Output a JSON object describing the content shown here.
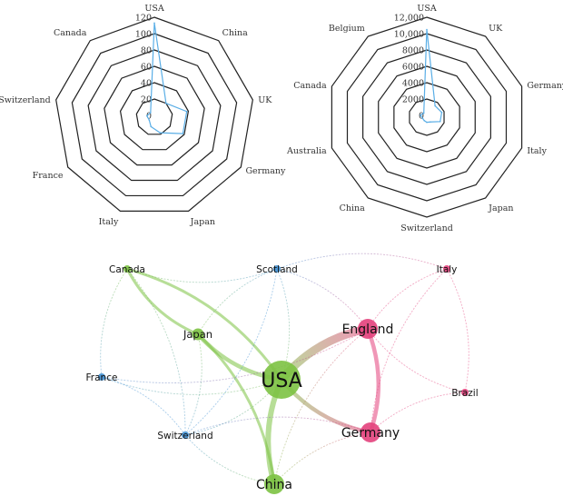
{
  "chart_data": [
    {
      "type": "radar",
      "axes": [
        "USA",
        "China",
        "UK",
        "Germany",
        "Japan",
        "Italy",
        "France",
        "Switzerland",
        "Canada"
      ],
      "ticks": [
        "0",
        "20",
        "40",
        "60",
        "80",
        "100",
        "120"
      ],
      "range": [
        0,
        120
      ],
      "series": [
        {
          "values": [
            113,
            20,
            38,
            38,
            18,
            10,
            5,
            7,
            5
          ],
          "color": "#5aaee6"
        }
      ]
    },
    {
      "type": "radar",
      "axes": [
        "USA",
        "UK",
        "Germany",
        "Italy",
        "Japan",
        "Switzerland",
        "China",
        "Australia",
        "Canada",
        "Belgium"
      ],
      "ticks": [
        "0",
        "2000",
        "4000",
        "6000",
        "8000",
        "10,000",
        "12,000"
      ],
      "range": [
        0,
        12000
      ],
      "series": [
        {
          "values": [
            10500,
            1500,
            1700,
            1500,
            500,
            400,
            300,
            300,
            600,
            400
          ],
          "color": "#5aaee6"
        }
      ]
    },
    {
      "type": "network",
      "nodes": [
        {
          "id": "USA",
          "label": "USA",
          "group": "green",
          "size": 5
        },
        {
          "id": "China",
          "label": "China",
          "group": "green",
          "size": 3
        },
        {
          "id": "Japan",
          "label": "Japan",
          "group": "green",
          "size": 2
        },
        {
          "id": "Canada",
          "label": "Canada",
          "group": "green",
          "size": 1
        },
        {
          "id": "England",
          "label": "England",
          "group": "pink",
          "size": 3
        },
        {
          "id": "Germany",
          "label": "Germany",
          "group": "pink",
          "size": 3
        },
        {
          "id": "Italy",
          "label": "Italy",
          "group": "pink",
          "size": 1
        },
        {
          "id": "Brazil",
          "label": "Brazil",
          "group": "pink",
          "size": 1
        },
        {
          "id": "Scotland",
          "label": "Scotland",
          "group": "blue",
          "size": 1
        },
        {
          "id": "France",
          "label": "France",
          "group": "blue",
          "size": 1
        },
        {
          "id": "Switzerland",
          "label": "Switzerland",
          "group": "blue",
          "size": 1
        }
      ],
      "links": [
        {
          "source": "USA",
          "target": "England",
          "weight": 5
        },
        {
          "source": "USA",
          "target": "China",
          "weight": 4
        },
        {
          "source": "USA",
          "target": "Japan",
          "weight": 3
        },
        {
          "source": "USA",
          "target": "Germany",
          "weight": 3
        },
        {
          "source": "England",
          "target": "Germany",
          "weight": 3
        },
        {
          "source": "USA",
          "target": "Canada",
          "weight": 2
        },
        {
          "source": "Japan",
          "target": "China",
          "weight": 2
        },
        {
          "source": "Canada",
          "target": "Japan",
          "weight": 2
        },
        {
          "source": "USA",
          "target": "Switzerland",
          "weight": 1
        },
        {
          "source": "USA",
          "target": "Scotland",
          "weight": 1
        },
        {
          "source": "USA",
          "target": "France",
          "weight": 1
        },
        {
          "source": "Germany",
          "target": "China",
          "weight": 1
        },
        {
          "source": "England",
          "target": "Italy",
          "weight": 1
        },
        {
          "source": "England",
          "target": "Scotland",
          "weight": 1
        },
        {
          "source": "Switzerland",
          "target": "Germany",
          "weight": 1
        },
        {
          "source": "Switzerland",
          "target": "China",
          "weight": 1
        },
        {
          "source": "France",
          "target": "Switzerland",
          "weight": 1
        },
        {
          "source": "Canada",
          "target": "Scotland",
          "weight": 1
        },
        {
          "source": "Canada",
          "target": "Switzerland",
          "weight": 1
        },
        {
          "source": "Canada",
          "target": "France",
          "weight": 1
        },
        {
          "source": "Scotland",
          "target": "Switzerland",
          "weight": 1
        },
        {
          "source": "Scotland",
          "target": "Japan",
          "weight": 1
        },
        {
          "source": "Scotland",
          "target": "Italy",
          "weight": 1
        },
        {
          "source": "Italy",
          "target": "Germany",
          "weight": 1
        },
        {
          "source": "Italy",
          "target": "Brazil",
          "weight": 1
        },
        {
          "source": "England",
          "target": "Brazil",
          "weight": 1
        },
        {
          "source": "Germany",
          "target": "Brazil",
          "weight": 1
        },
        {
          "source": "England",
          "target": "China",
          "weight": 1
        },
        {
          "source": "Japan",
          "target": "Switzerland",
          "weight": 1
        },
        {
          "source": "France",
          "target": "England",
          "weight": 1
        }
      ],
      "colors": {
        "green": "#7cc242",
        "pink": "#e3417c",
        "blue": "#3f8fd2"
      }
    }
  ]
}
